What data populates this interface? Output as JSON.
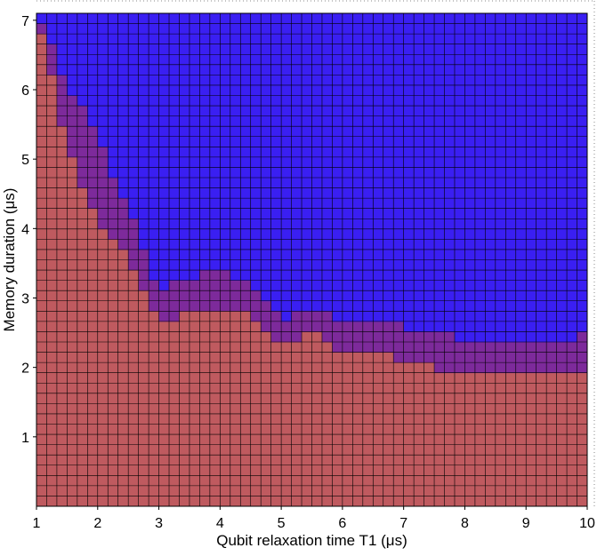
{
  "chart_data": {
    "type": "heatmap",
    "xlabel": "Qubit relaxation time T1 (μs)",
    "ylabel": "Memory duration (μs)",
    "xlim": [
      1,
      10
    ],
    "ylim": [
      0,
      7.1
    ],
    "x_ticks": [
      "1",
      "2",
      "3",
      "4",
      "5",
      "6",
      "7",
      "8",
      "9",
      "10"
    ],
    "y_ticks": [
      "1",
      "2",
      "3",
      "4",
      "5",
      "6",
      "7"
    ],
    "grid": true,
    "colors": {
      "low": "#bf5a5f",
      "transition": "#7d2a9b",
      "high": "#3a1ff2",
      "gridline": "#000000"
    },
    "boundary_x": [
      1.0,
      1.5,
      2.0,
      2.5,
      3.0,
      3.5,
      4.0,
      4.5,
      5.0,
      5.5,
      6.0,
      6.5,
      7.0,
      7.5,
      8.0,
      8.5,
      9.0,
      9.5,
      10.0
    ],
    "lower_boundary_y": [
      7.1,
      5.2,
      4.1,
      3.6,
      2.6,
      2.8,
      2.9,
      2.8,
      2.3,
      2.5,
      2.2,
      2.2,
      2.1,
      2.0,
      1.9,
      1.9,
      1.9,
      1.9,
      2.0
    ],
    "upper_boundary_y": [
      7.1,
      6.1,
      5.3,
      4.3,
      3.1,
      3.3,
      3.4,
      3.2,
      2.7,
      2.9,
      2.6,
      2.7,
      2.6,
      2.5,
      2.4,
      2.3,
      2.4,
      2.3,
      2.5
    ]
  }
}
